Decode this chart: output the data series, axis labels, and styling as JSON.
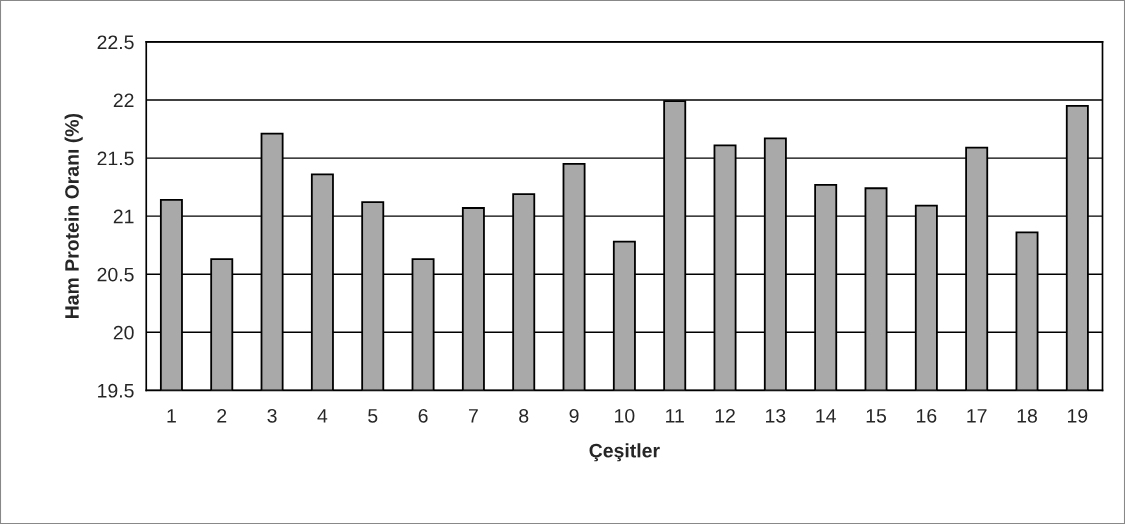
{
  "chart_data": {
    "type": "bar",
    "xlabel": "Çeşitler",
    "ylabel": "Ham Protein Oranı (%)",
    "categories": [
      "1",
      "2",
      "3",
      "4",
      "5",
      "6",
      "7",
      "8",
      "9",
      "10",
      "11",
      "12",
      "13",
      "14",
      "15",
      "16",
      "17",
      "18",
      "19"
    ],
    "values": [
      21.14,
      20.63,
      21.71,
      21.36,
      21.12,
      20.63,
      21.07,
      21.19,
      21.45,
      20.78,
      21.99,
      21.61,
      21.67,
      21.27,
      21.24,
      21.09,
      21.59,
      20.86,
      21.95
    ],
    "color": "#a9a9a9",
    "ylim": [
      19.5,
      22.5
    ],
    "yticks": [
      19.5,
      20,
      20.5,
      21,
      21.5,
      22,
      22.5
    ],
    "grid": "y",
    "legend": false
  }
}
